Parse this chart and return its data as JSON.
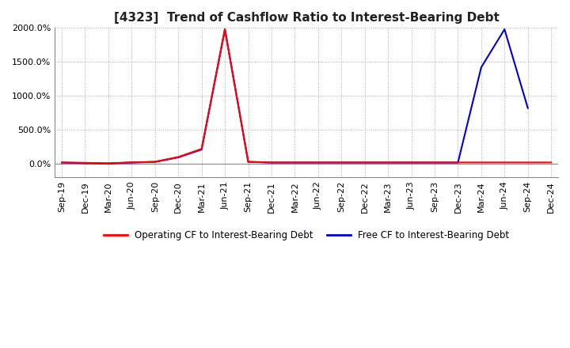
{
  "title": "[4323]  Trend of Cashflow Ratio to Interest-Bearing Debt",
  "x_labels": [
    "Sep-19",
    "Dec-19",
    "Mar-20",
    "Jun-20",
    "Sep-20",
    "Dec-20",
    "Mar-21",
    "Jun-21",
    "Sep-21",
    "Dec-21",
    "Mar-22",
    "Jun-22",
    "Sep-22",
    "Dec-22",
    "Mar-23",
    "Jun-23",
    "Sep-23",
    "Dec-23",
    "Mar-24",
    "Jun-24",
    "Sep-24",
    "Dec-24"
  ],
  "operating_cf": [
    20,
    15,
    8,
    22,
    30,
    100,
    220,
    1980,
    30,
    20,
    20,
    20,
    20,
    20,
    20,
    20,
    20,
    20,
    20,
    20,
    20,
    20
  ],
  "free_cf": [
    18,
    10,
    5,
    18,
    28,
    95,
    210,
    1980,
    28,
    18,
    18,
    18,
    18,
    18,
    18,
    18,
    18,
    18,
    1420,
    1980,
    820,
    null
  ],
  "operating_color": "#ff0000",
  "free_color": "#0000cc",
  "ylim_min": -200,
  "ylim_max": 2000,
  "yticks": [
    0,
    500,
    1000,
    1500,
    2000
  ],
  "ytick_labels": [
    "0.0%",
    "500.0%",
    "1000.0%",
    "1500.0%",
    "2000.0%"
  ],
  "background_color": "#ffffff",
  "grid_color": "#aaaaaa",
  "legend_op": "Operating CF to Interest-Bearing Debt",
  "legend_free": "Free CF to Interest-Bearing Debt",
  "title_fontsize": 11,
  "tick_fontsize": 8,
  "legend_fontsize": 8.5
}
